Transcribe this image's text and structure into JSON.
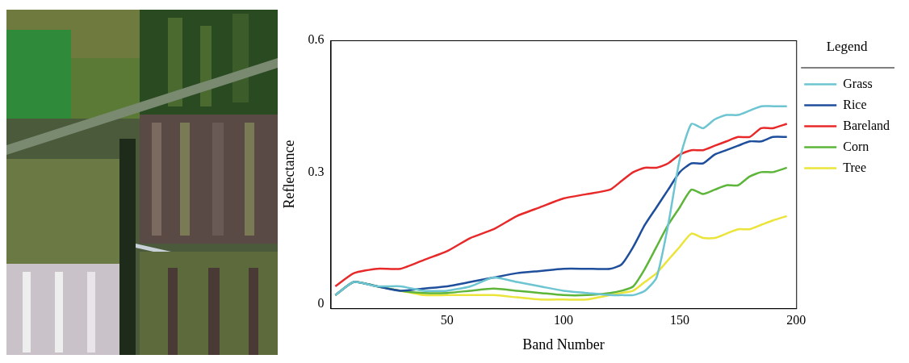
{
  "chart_data": {
    "type": "line",
    "x_label": "Band Number",
    "y_label": "Reflectance",
    "legend_title": "Legend",
    "legend": "right",
    "grid": false,
    "xlim": [
      0,
      200
    ],
    "xticks": [
      50,
      100,
      150,
      200
    ],
    "ylim": [
      -0.01,
      0.6
    ],
    "yticks": [
      0,
      0.3,
      0.6
    ],
    "x": [
      2,
      10,
      20,
      30,
      40,
      50,
      60,
      70,
      80,
      90,
      100,
      110,
      120,
      125,
      130,
      135,
      140,
      145,
      150,
      155,
      160,
      165,
      170,
      175,
      180,
      185,
      190,
      196
    ],
    "series": [
      {
        "name": "Grass",
        "color": "#6cc5d1",
        "values": [
          0.02,
          0.05,
          0.04,
          0.04,
          0.03,
          0.03,
          0.04,
          0.06,
          0.05,
          0.04,
          0.03,
          0.025,
          0.02,
          0.02,
          0.02,
          0.03,
          0.06,
          0.18,
          0.33,
          0.41,
          0.4,
          0.42,
          0.43,
          0.43,
          0.44,
          0.45,
          0.45,
          0.45
        ]
      },
      {
        "name": "Rice",
        "color": "#1f4e9c",
        "values": [
          0.02,
          0.05,
          0.04,
          0.03,
          0.035,
          0.04,
          0.05,
          0.06,
          0.07,
          0.075,
          0.08,
          0.08,
          0.08,
          0.09,
          0.13,
          0.18,
          0.22,
          0.26,
          0.3,
          0.32,
          0.32,
          0.34,
          0.35,
          0.36,
          0.37,
          0.37,
          0.38,
          0.38
        ]
      },
      {
        "name": "Bareland",
        "color": "#e8292a",
        "values": [
          0.04,
          0.07,
          0.08,
          0.08,
          0.1,
          0.12,
          0.15,
          0.17,
          0.2,
          0.22,
          0.24,
          0.25,
          0.26,
          0.28,
          0.3,
          0.31,
          0.31,
          0.32,
          0.34,
          0.35,
          0.35,
          0.36,
          0.37,
          0.38,
          0.38,
          0.4,
          0.4,
          0.41
        ]
      },
      {
        "name": "Corn",
        "color": "#5db53a",
        "values": [
          0.02,
          0.05,
          0.04,
          0.03,
          0.025,
          0.025,
          0.03,
          0.035,
          0.03,
          0.025,
          0.02,
          0.02,
          0.025,
          0.03,
          0.04,
          0.08,
          0.13,
          0.18,
          0.22,
          0.26,
          0.25,
          0.26,
          0.27,
          0.27,
          0.29,
          0.3,
          0.3,
          0.31
        ]
      },
      {
        "name": "Tree",
        "color": "#ebe43a",
        "values": [
          0.02,
          0.05,
          0.04,
          0.03,
          0.02,
          0.02,
          0.02,
          0.02,
          0.015,
          0.01,
          0.01,
          0.01,
          0.02,
          0.025,
          0.03,
          0.05,
          0.07,
          0.1,
          0.13,
          0.16,
          0.15,
          0.15,
          0.16,
          0.17,
          0.17,
          0.18,
          0.19,
          0.2
        ]
      }
    ]
  }
}
